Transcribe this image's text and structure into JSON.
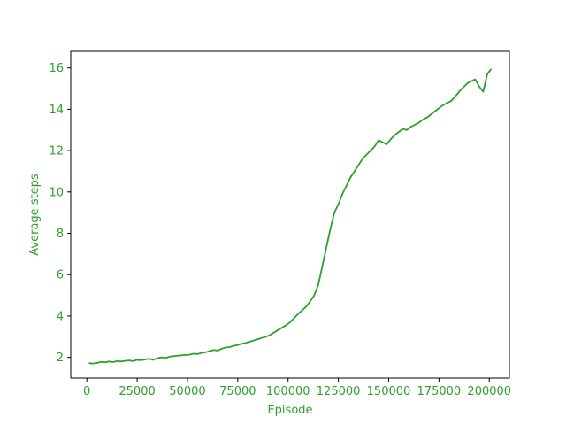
{
  "colors": {
    "series": "#2ca02c",
    "axis": "#000000",
    "text": "#2ca02c",
    "background": "#ffffff"
  },
  "chart_data": {
    "type": "line",
    "title": "",
    "xlabel": "Episode",
    "ylabel": "Average steps",
    "xlim": [
      -8000,
      210000
    ],
    "ylim": [
      1.0,
      16.8
    ],
    "xticks": [
      0,
      25000,
      50000,
      75000,
      100000,
      125000,
      150000,
      175000,
      200000
    ],
    "yticks": [
      2,
      4,
      6,
      8,
      10,
      12,
      14,
      16
    ],
    "grid": false,
    "legend": "none",
    "series": [
      {
        "x": [
          1000,
          3000,
          5000,
          7000,
          9000,
          11000,
          13000,
          15000,
          17000,
          19000,
          21000,
          23000,
          25000,
          27000,
          29000,
          31000,
          33000,
          35000,
          37000,
          39000,
          41000,
          43000,
          45000,
          47000,
          49000,
          51000,
          53000,
          55000,
          57000,
          59000,
          61000,
          63000,
          65000,
          67000,
          69000,
          71000,
          73000,
          75000,
          77000,
          79000,
          81000,
          83000,
          85000,
          87000,
          89000,
          91000,
          93000,
          95000,
          97000,
          99000,
          101000,
          103000,
          105000,
          107000,
          109000,
          111000,
          113000,
          115000,
          117000,
          119000,
          121000,
          123000,
          125000,
          127000,
          129000,
          131000,
          133000,
          135000,
          137000,
          139000,
          141000,
          143000,
          145000,
          147000,
          149000,
          151000,
          153000,
          155000,
          157000,
          159000,
          161000,
          163000,
          165000,
          167000,
          169000,
          171000,
          173000,
          175000,
          177000,
          179000,
          181000,
          183000,
          185000,
          187000,
          189000,
          191000,
          193000,
          195000,
          197000,
          199000,
          201000
        ],
        "y": [
          1.72,
          1.7,
          1.73,
          1.78,
          1.76,
          1.8,
          1.77,
          1.82,
          1.8,
          1.83,
          1.85,
          1.82,
          1.88,
          1.86,
          1.9,
          1.93,
          1.88,
          1.96,
          2.0,
          1.97,
          2.03,
          2.06,
          2.08,
          2.1,
          2.12,
          2.13,
          2.18,
          2.16,
          2.22,
          2.25,
          2.3,
          2.36,
          2.33,
          2.42,
          2.48,
          2.5,
          2.56,
          2.6,
          2.66,
          2.7,
          2.76,
          2.82,
          2.88,
          2.94,
          3.0,
          3.08,
          3.2,
          3.32,
          3.44,
          3.55,
          3.7,
          3.9,
          4.1,
          4.28,
          4.45,
          4.72,
          5.0,
          5.5,
          6.4,
          7.3,
          8.2,
          9.0,
          9.4,
          9.9,
          10.3,
          10.7,
          11.0,
          11.3,
          11.6,
          11.8,
          12.0,
          12.2,
          12.5,
          12.4,
          12.3,
          12.55,
          12.75,
          12.9,
          13.05,
          13.0,
          13.15,
          13.25,
          13.35,
          13.5,
          13.6,
          13.75,
          13.9,
          14.05,
          14.2,
          14.3,
          14.4,
          14.6,
          14.85,
          15.05,
          15.25,
          15.35,
          15.45,
          15.1,
          14.85,
          15.7,
          15.95
        ]
      }
    ]
  }
}
